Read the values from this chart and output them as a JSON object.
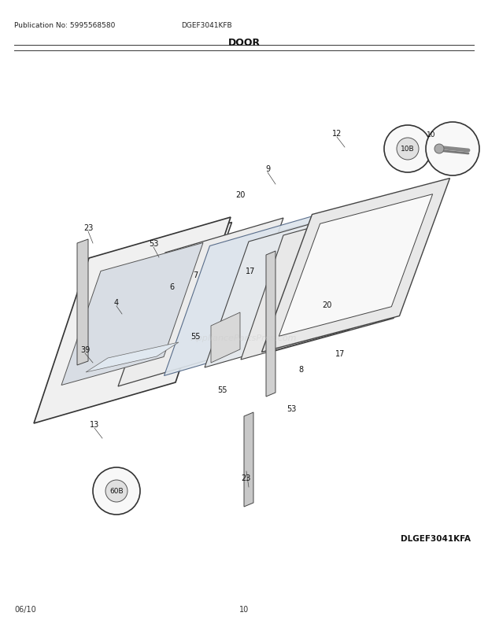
{
  "pub_no": "Publication No: 5995568580",
  "model": "DGEF3041KFB",
  "section": "DOOR",
  "footer_left": "06/10",
  "footer_center": "10",
  "footer_right": "DLGEF3041KFA",
  "bg_color": "#ffffff",
  "line_color": "#000000",
  "text_color": "#000000",
  "figsize": [
    6.2,
    8.03
  ],
  "dpi": 100
}
